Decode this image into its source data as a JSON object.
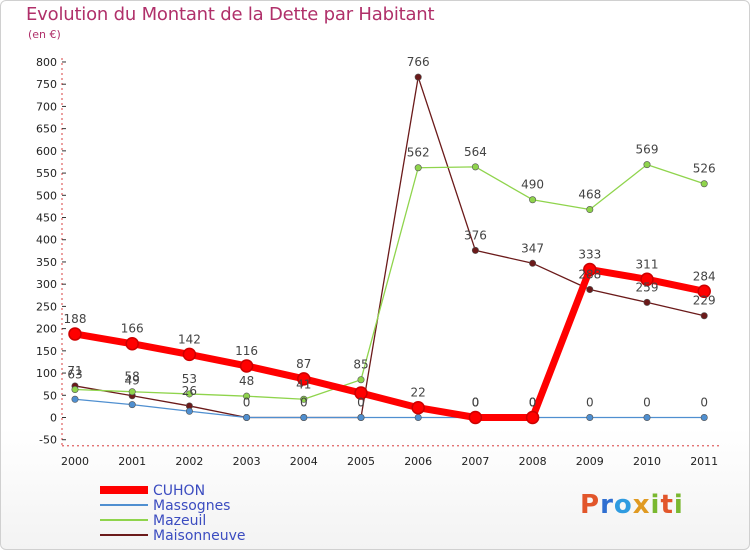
{
  "title": "Evolution du Montant de la Dette par Habitant",
  "subtitle": "(en €)",
  "logo": {
    "letters": [
      "P",
      "r",
      "o",
      "x",
      "i",
      "t",
      "i"
    ],
    "colors": [
      "#e2562b",
      "#2f6fd1",
      "#2f9be0",
      "#e09a22",
      "#7ab830",
      "#e2562b",
      "#7ab830"
    ]
  },
  "chart_data": {
    "type": "line",
    "categories": [
      "2000",
      "2001",
      "2002",
      "2003",
      "2004",
      "2005",
      "2006",
      "2007",
      "2008",
      "2009",
      "2010",
      "2011"
    ],
    "ylim": [
      -50,
      800
    ],
    "yticks": [
      -50,
      0,
      50,
      100,
      150,
      200,
      250,
      300,
      350,
      400,
      450,
      500,
      550,
      600,
      650,
      700,
      750,
      800
    ],
    "grid": false,
    "legend_position": "bottom-left",
    "series": [
      {
        "name": "CUHON",
        "color": "#ff0000",
        "values": [
          188,
          166,
          142,
          116,
          87,
          55,
          22,
          0,
          0,
          333,
          311,
          284
        ],
        "labels": [
          "188",
          "166",
          "142",
          "116",
          "87",
          "55",
          "22",
          "0",
          "0",
          "333",
          "311",
          "284"
        ],
        "label_idx": [
          0,
          1,
          2,
          3,
          4,
          6,
          7,
          8,
          9,
          10,
          11
        ]
      },
      {
        "name": "Massognes",
        "color": "#4f8fd0",
        "values": [
          41,
          29,
          14,
          0,
          0,
          0,
          0,
          0,
          0,
          0,
          0,
          0
        ],
        "labels": [
          "41",
          "29",
          "14",
          "0",
          "0",
          "0",
          "0",
          "0",
          "0",
          "0",
          "0",
          "0"
        ],
        "label_idx": [
          7,
          8,
          9,
          10,
          11
        ]
      },
      {
        "name": "Mazeuil",
        "color": "#8fd44c",
        "values": [
          63,
          58,
          53,
          48,
          41,
          85,
          562,
          564,
          490,
          468,
          569,
          526
        ],
        "labels": [
          "63",
          "58",
          "53",
          "48",
          "41",
          "85",
          "562",
          "564",
          "490",
          "468",
          "569",
          "526"
        ],
        "label_idx": [
          0,
          1,
          2,
          3,
          4,
          5,
          6,
          7,
          8,
          9,
          10,
          11
        ]
      },
      {
        "name": "Maisonneuve",
        "color": "#6b1a1a",
        "values": [
          71,
          49,
          26,
          0,
          0,
          0,
          766,
          376,
          347,
          288,
          259,
          229
        ],
        "labels": [
          "71",
          "49",
          "26",
          "0",
          "0",
          "0",
          "766",
          "376",
          "347",
          "288",
          "259",
          "229"
        ],
        "label_idx": [
          0,
          1,
          2,
          3,
          4,
          5,
          6,
          7,
          8,
          9,
          10,
          11
        ]
      }
    ]
  }
}
